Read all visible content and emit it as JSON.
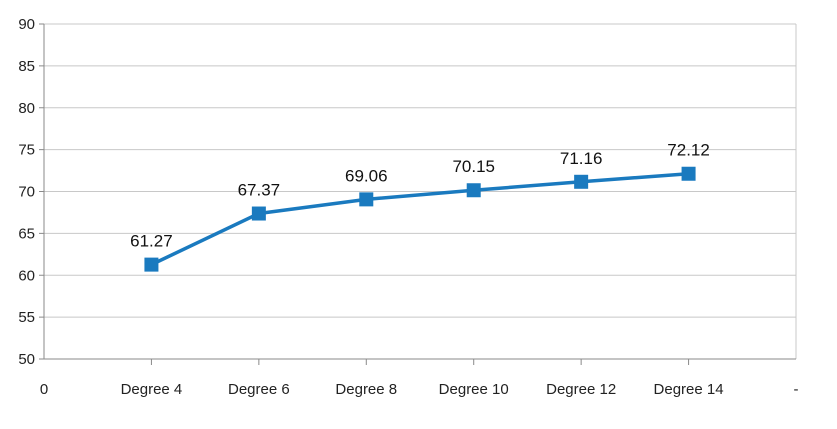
{
  "chart_data": {
    "type": "line",
    "categories": [
      "Degree 4",
      "Degree 6",
      "Degree 8",
      "Degree 10",
      "Degree 12",
      "Degree 14"
    ],
    "x_edge_labels": [
      "0",
      "-"
    ],
    "series": [
      {
        "values": [
          61.27,
          67.37,
          69.06,
          70.15,
          71.16,
          72.12
        ],
        "data_labels": [
          "61.27",
          "67.37",
          "69.06",
          "70.15",
          "71.16",
          "72.12"
        ],
        "color": "#1a7abf",
        "marker": "square"
      }
    ],
    "ylim": [
      50,
      90
    ],
    "yticks": [
      50,
      55,
      60,
      65,
      70,
      75,
      80,
      85,
      90
    ],
    "grid": true,
    "gridline_color": "#c8c8c8",
    "legend": "none"
  }
}
